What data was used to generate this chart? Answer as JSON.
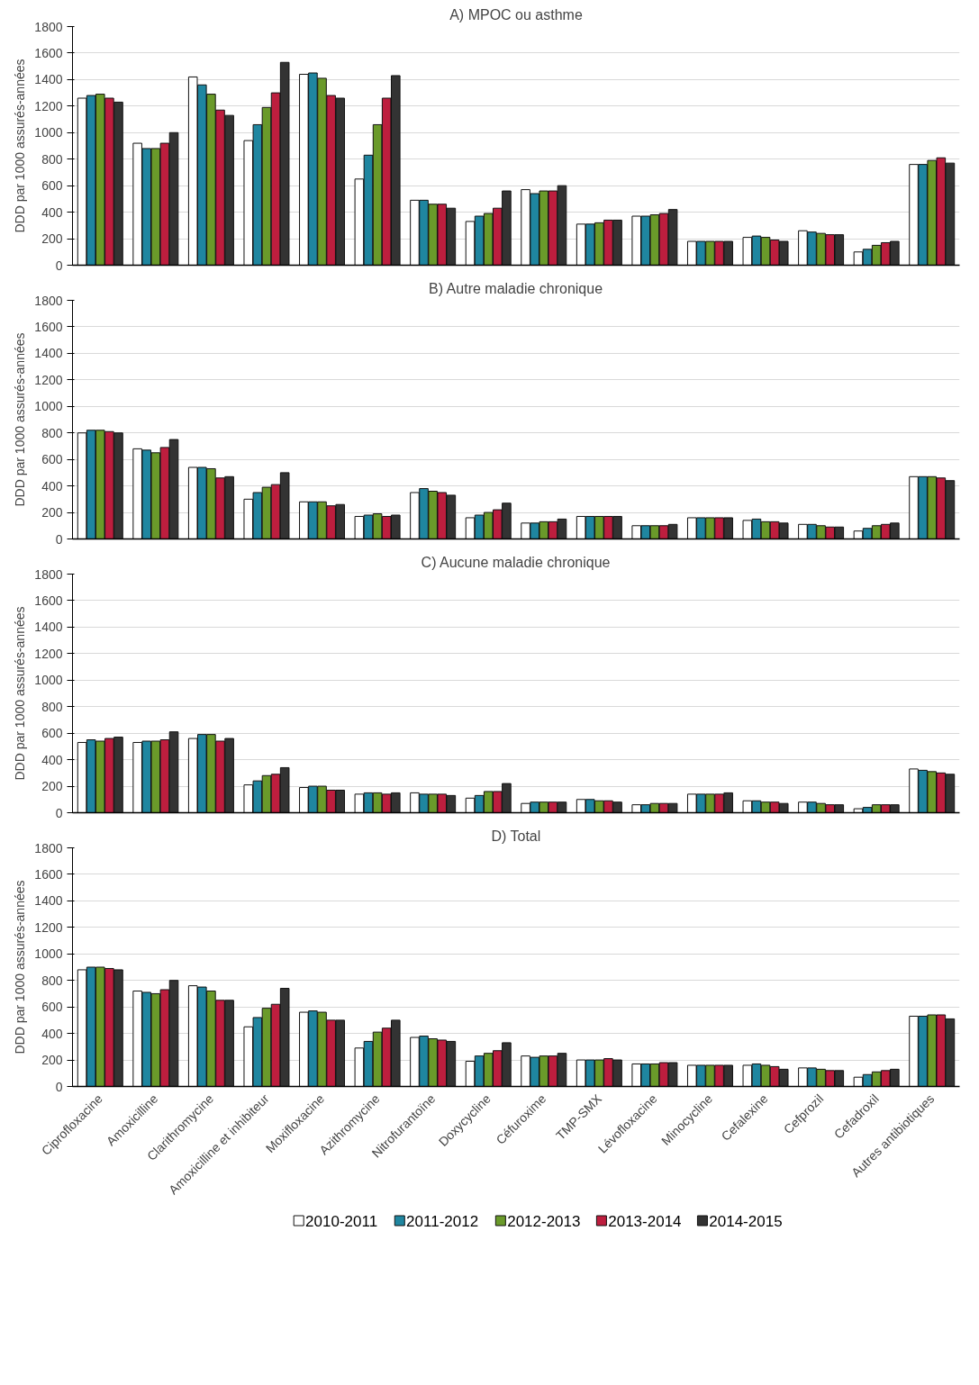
{
  "chart_data": [
    {
      "type": "bar",
      "title": "A) MPOC ou asthme",
      "ylabel": "DDD par 1000 assurés-années",
      "categories": [
        null,
        null,
        null,
        null,
        null,
        null,
        null,
        null,
        null,
        null,
        null,
        null,
        null,
        null,
        null,
        null
      ],
      "ylim": [
        0,
        1800
      ],
      "yticks": [
        0,
        200,
        400,
        600,
        800,
        1000,
        1200,
        1400,
        1600,
        1800
      ],
      "grid": "y",
      "legend": false,
      "tick_labels": "y",
      "series": [
        {
          "color": "#ffffff",
          "values": [
            1260,
            920,
            1420,
            940,
            1440,
            650,
            490,
            330,
            570,
            310,
            370,
            180,
            210,
            260,
            100,
            760
          ]
        },
        {
          "color": "#1f86a0",
          "values": [
            1280,
            880,
            1360,
            1060,
            1450,
            830,
            490,
            370,
            540,
            310,
            370,
            180,
            220,
            250,
            120,
            760
          ]
        },
        {
          "color": "#6a9a2a",
          "values": [
            1290,
            880,
            1290,
            1190,
            1410,
            1060,
            460,
            390,
            560,
            320,
            380,
            180,
            210,
            240,
            150,
            790
          ]
        },
        {
          "color": "#bd1e3e",
          "values": [
            1260,
            920,
            1170,
            1300,
            1280,
            1260,
            460,
            430,
            560,
            340,
            390,
            180,
            190,
            230,
            170,
            810
          ]
        },
        {
          "color": "#333333",
          "values": [
            1230,
            1000,
            1130,
            1530,
            1260,
            1430,
            430,
            560,
            600,
            340,
            420,
            180,
            180,
            230,
            180,
            770
          ]
        }
      ]
    },
    {
      "type": "bar",
      "title": "B) Autre maladie chronique",
      "ylabel": "DDD par 1000 assurés-années",
      "categories": [
        null,
        null,
        null,
        null,
        null,
        null,
        null,
        null,
        null,
        null,
        null,
        null,
        null,
        null,
        null,
        null
      ],
      "ylim": [
        0,
        1800
      ],
      "yticks": [
        0,
        200,
        400,
        600,
        800,
        1000,
        1200,
        1400,
        1600,
        1800
      ],
      "grid": "y",
      "legend": false,
      "tick_labels": "y",
      "series": [
        {
          "color": "#ffffff",
          "values": [
            800,
            680,
            540,
            300,
            280,
            170,
            350,
            160,
            120,
            170,
            100,
            160,
            140,
            110,
            60,
            470
          ]
        },
        {
          "color": "#1f86a0",
          "values": [
            820,
            670,
            540,
            350,
            280,
            180,
            380,
            180,
            120,
            170,
            100,
            160,
            150,
            110,
            80,
            470
          ]
        },
        {
          "color": "#6a9a2a",
          "values": [
            820,
            650,
            530,
            390,
            280,
            190,
            360,
            200,
            130,
            170,
            100,
            160,
            130,
            100,
            100,
            470
          ]
        },
        {
          "color": "#bd1e3e",
          "values": [
            810,
            690,
            460,
            410,
            250,
            170,
            350,
            220,
            130,
            170,
            100,
            160,
            130,
            90,
            110,
            460
          ]
        },
        {
          "color": "#333333",
          "values": [
            800,
            750,
            470,
            500,
            260,
            180,
            330,
            270,
            150,
            170,
            110,
            160,
            120,
            90,
            120,
            440
          ]
        }
      ]
    },
    {
      "type": "bar",
      "title": "C) Aucune maladie chronique",
      "ylabel": "DDD par 1000 assurés-années",
      "categories": [
        null,
        null,
        null,
        null,
        null,
        null,
        null,
        null,
        null,
        null,
        null,
        null,
        null,
        null,
        null,
        null
      ],
      "ylim": [
        0,
        1800
      ],
      "yticks": [
        0,
        200,
        400,
        600,
        800,
        1000,
        1200,
        1400,
        1600,
        1800
      ],
      "grid": "y",
      "legend": false,
      "tick_labels": "y",
      "series": [
        {
          "color": "#ffffff",
          "values": [
            530,
            530,
            560,
            210,
            190,
            140,
            150,
            110,
            70,
            100,
            60,
            140,
            90,
            80,
            30,
            330
          ]
        },
        {
          "color": "#1f86a0",
          "values": [
            550,
            540,
            590,
            240,
            200,
            150,
            140,
            130,
            80,
            100,
            60,
            140,
            90,
            80,
            40,
            320
          ]
        },
        {
          "color": "#6a9a2a",
          "values": [
            540,
            540,
            590,
            280,
            200,
            150,
            140,
            160,
            80,
            90,
            70,
            140,
            80,
            70,
            60,
            310
          ]
        },
        {
          "color": "#bd1e3e",
          "values": [
            560,
            550,
            540,
            290,
            170,
            140,
            140,
            160,
            80,
            90,
            70,
            140,
            80,
            60,
            60,
            300
          ]
        },
        {
          "color": "#333333",
          "values": [
            570,
            610,
            560,
            340,
            170,
            150,
            130,
            220,
            80,
            80,
            70,
            150,
            70,
            60,
            60,
            290
          ]
        }
      ]
    },
    {
      "type": "bar",
      "title": "D) Total",
      "ylabel": "DDD par 1000 assurés-années",
      "categories": [
        "Ciprofloxacine",
        "Amoxicilline",
        "Clarithromycine",
        "Amoxicilline et inhibiteur",
        "Moxifloxacine",
        "Azithromycine",
        "Nitrofurantoïne",
        "Doxycycline",
        "Céfuroxime",
        "TMP-SMX",
        "Lévofloxacine",
        "Minocycline",
        "Cefalexine",
        "Cefprozil",
        "Cefadroxil",
        "Autres antibiotiques"
      ],
      "ylim": [
        0,
        1800
      ],
      "yticks": [
        0,
        200,
        400,
        600,
        800,
        1000,
        1200,
        1400,
        1600,
        1800
      ],
      "grid": "y",
      "legend": "bottom",
      "series": [
        {
          "name": "2010-2011",
          "color": "#ffffff",
          "values": [
            880,
            720,
            760,
            450,
            560,
            290,
            370,
            190,
            230,
            200,
            170,
            160,
            160,
            140,
            70,
            530
          ]
        },
        {
          "name": "2011-2012",
          "color": "#1f86a0",
          "values": [
            900,
            710,
            750,
            520,
            570,
            340,
            380,
            230,
            220,
            200,
            170,
            160,
            170,
            140,
            90,
            530
          ]
        },
        {
          "name": "2012-2013",
          "color": "#6a9a2a",
          "values": [
            900,
            700,
            720,
            590,
            560,
            410,
            360,
            250,
            230,
            200,
            170,
            160,
            160,
            130,
            110,
            540
          ]
        },
        {
          "name": "2013-2014",
          "color": "#bd1e3e",
          "values": [
            890,
            730,
            650,
            620,
            500,
            440,
            350,
            270,
            230,
            210,
            180,
            160,
            150,
            120,
            120,
            540
          ]
        },
        {
          "name": "2014-2015",
          "color": "#333333",
          "values": [
            880,
            800,
            650,
            740,
            500,
            500,
            340,
            330,
            250,
            200,
            180,
            160,
            130,
            120,
            130,
            510
          ]
        }
      ]
    }
  ]
}
